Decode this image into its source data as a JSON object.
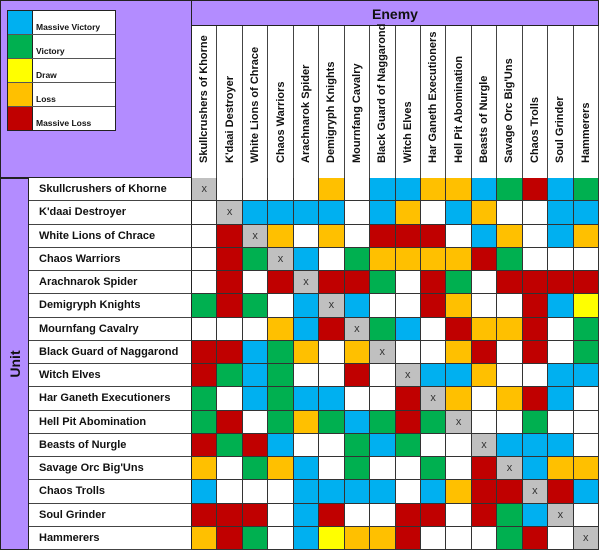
{
  "legend": [
    {
      "label": "Massive Victory",
      "color": "#00b0f0"
    },
    {
      "label": "Victory",
      "color": "#00b050"
    },
    {
      "label": "Draw",
      "color": "#ffff00"
    },
    {
      "label": "Loss",
      "color": "#ffc000"
    },
    {
      "label": "Massive Loss",
      "color": "#c00000"
    }
  ],
  "self_color": "#c0c0c0",
  "header_color": "#b38cff",
  "chart_data": {
    "type": "heatmap",
    "xlabel": "Enemy",
    "ylabel": "Unit",
    "columns": [
      "Skullcrushers of Khorne",
      "K'daai Destroyer",
      "White Lions of Chrace",
      "Chaos Warriors",
      "Arachnarok Spider",
      "Demigryph Knights",
      "Mournfang Cavalry",
      "Black Guard of Naggarond",
      "Witch Elves",
      "Har Ganeth Executioners",
      "Hell Pit Abomination",
      "Beasts of Nurgle",
      "Savage Orc Big'Uns",
      "Chaos Trolls",
      "Soul Grinder",
      "Hammerers"
    ],
    "rows": [
      "Skullcrushers of Khorne",
      "K'daai Destroyer",
      "White Lions of Chrace",
      "Chaos Warriors",
      "Arachnarok Spider",
      "Demigryph Knights",
      "Mournfang Cavalry",
      "Black Guard of Naggarond",
      "Witch Elves",
      "Har Ganeth Executioners",
      "Hell Pit Abomination",
      "Beasts of Nurgle",
      "Savage Orc Big'Uns",
      "Chaos Trolls",
      "Soul Grinder",
      "Hammerers"
    ],
    "values": [
      [
        "x",
        "",
        "",
        "",
        "",
        "Loss",
        "",
        "Massive Victory",
        "Massive Victory",
        "Loss",
        "Loss",
        "Massive Victory",
        "Victory",
        "Massive Loss",
        "Massive Victory",
        "Victory"
      ],
      [
        "",
        "x",
        "Massive Victory",
        "Massive Victory",
        "Massive Victory",
        "Massive Victory",
        "",
        "Massive Victory",
        "Loss",
        "",
        "Massive Victory",
        "Loss",
        "",
        "",
        "Massive Victory",
        "Massive Victory"
      ],
      [
        "",
        "Massive Loss",
        "x",
        "Loss",
        "",
        "Loss",
        "",
        "Massive Loss",
        "Massive Loss",
        "Massive Loss",
        "",
        "Massive Victory",
        "Loss",
        "",
        "Massive Victory",
        "Loss"
      ],
      [
        "",
        "Massive Loss",
        "Victory",
        "x",
        "Massive Victory",
        "",
        "Victory",
        "Loss",
        "Loss",
        "Loss",
        "Loss",
        "Massive Loss",
        "Victory",
        "",
        "",
        ""
      ],
      [
        "",
        "Massive Loss",
        "",
        "Massive Loss",
        "x",
        "Massive Loss",
        "Massive Loss",
        "Victory",
        "",
        "Massive Loss",
        "Victory",
        "",
        "Massive Loss",
        "Massive Loss",
        "Massive Loss",
        "Massive Loss"
      ],
      [
        "Victory",
        "Massive Loss",
        "Victory",
        "",
        "Massive Victory",
        "x",
        "Massive Victory",
        "",
        "",
        "Massive Loss",
        "Loss",
        "",
        "",
        "Massive Loss",
        "Massive Victory",
        "Draw"
      ],
      [
        "",
        "",
        "",
        "Loss",
        "Massive Victory",
        "Massive Loss",
        "x",
        "Victory",
        "Massive Victory",
        "",
        "Massive Loss",
        "Loss",
        "Loss",
        "Massive Loss",
        "",
        "Victory"
      ],
      [
        "Massive Loss",
        "Massive Loss",
        "Massive Victory",
        "Victory",
        "Loss",
        "",
        "Loss",
        "x",
        "",
        "",
        "Loss",
        "Massive Loss",
        "",
        "Massive Loss",
        "",
        "Victory"
      ],
      [
        "Massive Loss",
        "Victory",
        "Massive Victory",
        "Victory",
        "",
        "",
        "Massive Loss",
        "",
        "x",
        "Massive Victory",
        "Massive Victory",
        "Loss",
        "",
        "",
        "Massive Victory",
        "Massive Victory"
      ],
      [
        "Victory",
        "",
        "Massive Victory",
        "Victory",
        "Massive Victory",
        "Massive Victory",
        "",
        "",
        "Massive Loss",
        "x",
        "Loss",
        "",
        "Loss",
        "Massive Loss",
        "Massive Victory",
        ""
      ],
      [
        "Victory",
        "Massive Loss",
        "",
        "Victory",
        "Loss",
        "Victory",
        "Massive Victory",
        "Victory",
        "Massive Loss",
        "Victory",
        "x",
        "",
        "",
        "Victory",
        "",
        ""
      ],
      [
        "Massive Loss",
        "Victory",
        "Massive Loss",
        "Massive Victory",
        "",
        "",
        "Victory",
        "Massive Victory",
        "Victory",
        "",
        "",
        "x",
        "Massive Victory",
        "Massive Victory",
        "Massive Victory",
        ""
      ],
      [
        "Loss",
        "",
        "Victory",
        "Loss",
        "Massive Victory",
        "",
        "Victory",
        "",
        "",
        "Victory",
        "",
        "Massive Loss",
        "x",
        "Massive Victory",
        "Loss",
        "Loss"
      ],
      [
        "Massive Victory",
        "",
        "",
        "",
        "Massive Victory",
        "Massive Victory",
        "Massive Victory",
        "Massive Victory",
        "",
        "Massive Victory",
        "Loss",
        "Massive Loss",
        "Massive Loss",
        "x",
        "Massive Loss",
        "Massive Victory"
      ],
      [
        "Massive Loss",
        "Massive Loss",
        "Massive Loss",
        "",
        "Massive Victory",
        "Massive Loss",
        "",
        "",
        "Massive Loss",
        "Massive Loss",
        "",
        "Massive Loss",
        "Victory",
        "Massive Victory",
        "x",
        ""
      ],
      [
        "Loss",
        "Massive Loss",
        "Victory",
        "",
        "Massive Victory",
        "Draw",
        "Loss",
        "Loss",
        "Massive Loss",
        "",
        "",
        "",
        "Victory",
        "Massive Loss",
        "",
        "x"
      ]
    ]
  }
}
